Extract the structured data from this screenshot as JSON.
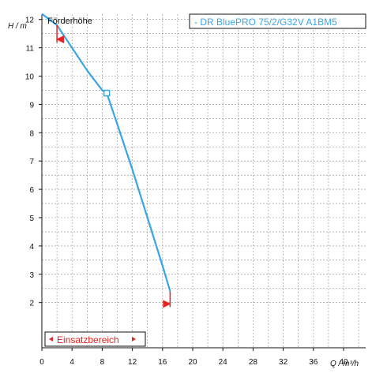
{
  "chart_data": {
    "type": "line",
    "title": "Förderhöhe",
    "ylabel": "H / m",
    "xlabel": "Q / m³/h",
    "xlim": [
      0,
      46
    ],
    "ylim": [
      1.5,
      12.6
    ],
    "grid": true,
    "x_ticks": [
      0,
      4,
      8,
      12,
      16,
      20,
      24,
      28,
      32,
      36,
      40
    ],
    "y_ticks": [
      2,
      3,
      4,
      5,
      6,
      7,
      8,
      9,
      10,
      11,
      12
    ],
    "series": [
      {
        "name": "- DR BluePRO 75/2/G32V A1BM5",
        "color": "#3aa5e6",
        "x": [
          0,
          2,
          4,
          6,
          8,
          8.6,
          10,
          12,
          14,
          16,
          17
        ],
        "y": [
          12.2,
          11.8,
          11.0,
          10.2,
          9.5,
          9.4,
          8.3,
          6.7,
          5.0,
          3.3,
          2.4
        ]
      }
    ],
    "operating_point": {
      "x": 8.6,
      "y": 9.4
    },
    "einsatzbereich": {
      "label": "Einsatzbereich",
      "x_min": 2,
      "x_max": 17,
      "color": "#e52320"
    }
  }
}
